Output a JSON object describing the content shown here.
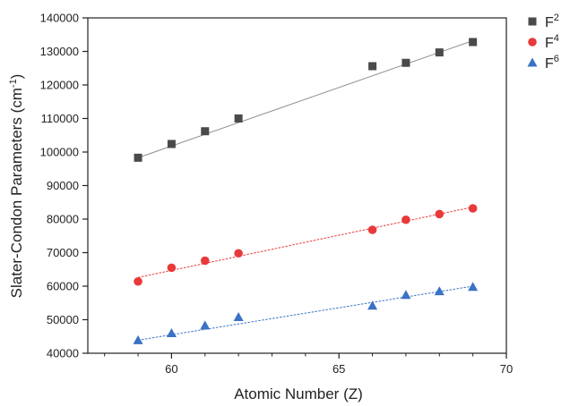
{
  "chart_data": {
    "type": "scatter",
    "xlabel": "Atomic Number (Z)",
    "ylabel_main": "Slater-Condon Parameters (cm",
    "ylabel_sup": "-1",
    "ylabel_close": ")",
    "xlim": [
      57.5,
      70
    ],
    "ylim": [
      40000,
      140000
    ],
    "xticks": [
      60,
      65,
      70
    ],
    "yticks": [
      40000,
      50000,
      60000,
      70000,
      80000,
      90000,
      100000,
      110000,
      120000,
      130000,
      140000
    ],
    "legend_position": "top-right",
    "grid": false,
    "series": [
      {
        "name": "F",
        "name_sup": "2",
        "marker": "square",
        "color": "#4a4a4a",
        "fit_color": "#8c8c8c",
        "x": [
          59,
          60,
          61,
          62,
          66,
          67,
          68,
          69
        ],
        "y": [
          98300,
          102400,
          106200,
          110000,
          125600,
          126600,
          129700,
          132800
        ],
        "fit": {
          "x": [
            59,
            69
          ],
          "y": [
            98300,
            133200
          ]
        }
      },
      {
        "name": "F",
        "name_sup": "4",
        "marker": "circle",
        "color": "#e8393b",
        "fit_color": "#e8393b",
        "x": [
          59,
          60,
          61,
          62,
          66,
          67,
          68,
          69
        ],
        "y": [
          61400,
          65500,
          67600,
          69800,
          76800,
          79800,
          81500,
          83200
        ],
        "fit": {
          "x": [
            59,
            69
          ],
          "y": [
            62600,
            83600
          ]
        }
      },
      {
        "name": "F",
        "name_sup": "6",
        "marker": "triangle",
        "color": "#3a72c4",
        "fit_color": "#3a72c4",
        "x": [
          59,
          60,
          61,
          62,
          66,
          67,
          68,
          69
        ],
        "y": [
          43900,
          46000,
          48300,
          50800,
          54200,
          57400,
          58500,
          59800
        ],
        "fit": {
          "x": [
            59,
            69
          ],
          "y": [
            43900,
            60000
          ]
        }
      }
    ]
  }
}
